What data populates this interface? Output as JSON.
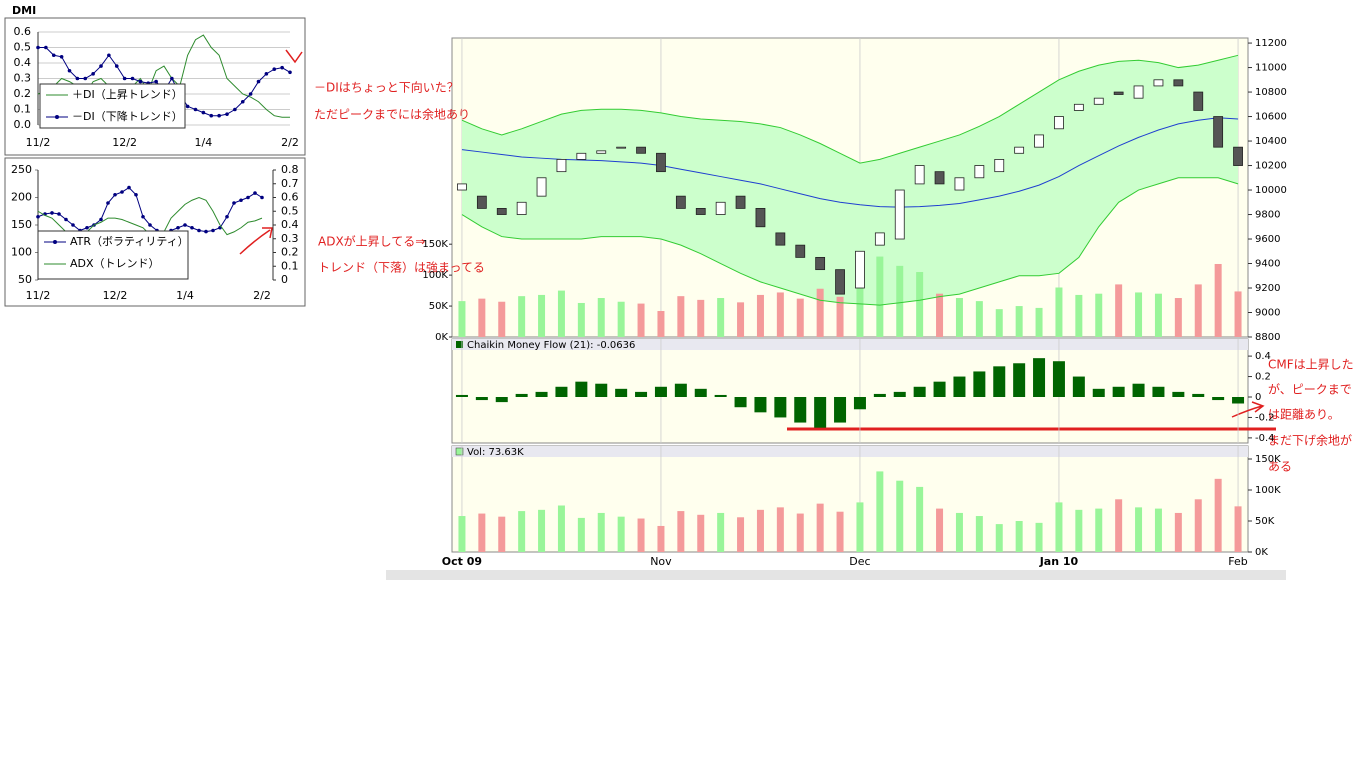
{
  "chart_data": [
    {
      "type": "line",
      "title": "DMI",
      "categories": [
        "11/2",
        null,
        null,
        null,
        null,
        null,
        null,
        null,
        null,
        null,
        null,
        "12/2",
        null,
        null,
        null,
        null,
        null,
        null,
        null,
        null,
        null,
        "1/4",
        null,
        null,
        null,
        null,
        null,
        null,
        null,
        null,
        null,
        null,
        "2/2"
      ],
      "series": [
        {
          "name": "＋DI（上昇トレンド）",
          "color": "#2e8b2e",
          "marker": false,
          "values": [
            0.2,
            0.22,
            0.25,
            0.3,
            0.28,
            0.25,
            0.2,
            0.28,
            0.3,
            0.25,
            0.2,
            0.18,
            0.25,
            0.3,
            0.22,
            0.35,
            0.38,
            0.3,
            0.25,
            0.45,
            0.55,
            0.58,
            0.5,
            0.45,
            0.3,
            0.25,
            0.2,
            0.18,
            0.15,
            0.1,
            0.06,
            0.05,
            0.05
          ]
        },
        {
          "name": "－DI（下降トレンド）",
          "color": "#000080",
          "marker": true,
          "values": [
            0.5,
            0.5,
            0.45,
            0.44,
            0.35,
            0.3,
            0.3,
            0.33,
            0.38,
            0.45,
            0.38,
            0.3,
            0.3,
            0.28,
            0.27,
            0.28,
            0.22,
            0.3,
            0.2,
            0.12,
            0.1,
            0.08,
            0.06,
            0.06,
            0.07,
            0.1,
            0.15,
            0.2,
            0.28,
            0.33,
            0.36,
            0.37,
            0.34
          ]
        }
      ],
      "ylim": [
        0,
        0.6
      ],
      "yticks": [
        {
          "value": 0,
          "label": "0.0"
        },
        0.1,
        0.2,
        0.3,
        0.4,
        0.5,
        0.6
      ],
      "grid": true
    },
    {
      "type": "line",
      "categories": [
        "11/2",
        null,
        null,
        null,
        null,
        null,
        null,
        null,
        null,
        null,
        null,
        "12/2",
        null,
        null,
        null,
        null,
        null,
        null,
        null,
        null,
        null,
        "1/4",
        null,
        null,
        null,
        null,
        null,
        null,
        null,
        null,
        null,
        null,
        "2/2"
      ],
      "series": [
        {
          "name": "ATR（ボラティリティ）",
          "color": "#000080",
          "marker": true,
          "values": [
            165,
            170,
            172,
            170,
            160,
            150,
            140,
            145,
            150,
            160,
            190,
            205,
            210,
            218,
            205,
            165,
            150,
            140,
            135,
            140,
            145,
            150,
            145,
            140,
            138,
            140,
            145,
            165,
            190,
            195,
            200,
            208,
            200
          ]
        },
        {
          "name": "ADX（トレンド）",
          "color": "#2e8b2e",
          "marker": false,
          "axis": "y2",
          "values": [
            0.5,
            0.47,
            0.45,
            0.4,
            0.35,
            0.32,
            0.3,
            0.35,
            0.4,
            0.42,
            0.45,
            0.45,
            0.44,
            0.42,
            0.4,
            0.38,
            0.33,
            0.3,
            0.35,
            0.45,
            0.5,
            0.55,
            0.58,
            0.6,
            0.58,
            0.5,
            0.4,
            0.33,
            0.35,
            0.38,
            0.42,
            0.43,
            0.45
          ]
        }
      ],
      "ylim": [
        50,
        250
      ],
      "yticks": [
        50,
        100,
        150,
        200,
        250
      ],
      "y2lim": [
        0,
        0.8
      ],
      "y2ticks": [
        0,
        0.1,
        0.2,
        0.3,
        0.4,
        0.5,
        0.6,
        0.7,
        0.8
      ],
      "grid": false
    },
    {
      "type": "candlestick",
      "categories": [
        "Oct 09",
        null,
        null,
        null,
        null,
        null,
        null,
        null,
        null,
        null,
        "Nov",
        null,
        null,
        null,
        null,
        null,
        null,
        null,
        null,
        null,
        "Dec",
        null,
        null,
        null,
        null,
        null,
        null,
        null,
        null,
        null,
        "Jan 10",
        null,
        null,
        null,
        null,
        null,
        null,
        null,
        null,
        "Feb"
      ],
      "open": [
        10000,
        9950,
        9850,
        9800,
        9950,
        10150,
        10250,
        10300,
        10350,
        10350,
        10300,
        9950,
        9850,
        9800,
        9950,
        9850,
        9650,
        9550,
        9450,
        9350,
        9200,
        9550,
        9600,
        10050,
        10150,
        10000,
        10100,
        10150,
        10300,
        10350,
        10500,
        10650,
        10700,
        10800,
        10750,
        10850,
        10900,
        10800,
        10600,
        10350
      ],
      "close": [
        10050,
        9850,
        9800,
        9900,
        10100,
        10250,
        10300,
        10320,
        10350,
        10300,
        10150,
        9850,
        9800,
        9900,
        9850,
        9700,
        9550,
        9450,
        9350,
        9150,
        9500,
        9650,
        10000,
        10200,
        10050,
        10100,
        10200,
        10250,
        10350,
        10450,
        10600,
        10700,
        10750,
        10780,
        10850,
        10900,
        10850,
        10650,
        10350,
        10200
      ],
      "upper_band": [
        10570,
        10500,
        10450,
        10500,
        10560,
        10620,
        10650,
        10660,
        10660,
        10650,
        10630,
        10600,
        10580,
        10570,
        10560,
        10540,
        10510,
        10450,
        10380,
        10300,
        10220,
        10250,
        10300,
        10350,
        10400,
        10450,
        10520,
        10600,
        10700,
        10800,
        10900,
        10970,
        11020,
        11050,
        11060,
        11040,
        11000,
        11020,
        11060,
        11100
      ],
      "middle_band": [
        10330,
        10310,
        10290,
        10270,
        10260,
        10250,
        10245,
        10240,
        10230,
        10220,
        10200,
        10170,
        10140,
        10110,
        10080,
        10050,
        10010,
        9970,
        9930,
        9900,
        9880,
        9865,
        9860,
        9865,
        9875,
        9890,
        9920,
        9950,
        9990,
        10040,
        10110,
        10200,
        10280,
        10360,
        10430,
        10490,
        10540,
        10570,
        10590,
        10580
      ],
      "lower_band": [
        9800,
        9700,
        9620,
        9600,
        9600,
        9600,
        9600,
        9620,
        9620,
        9620,
        9600,
        9550,
        9480,
        9400,
        9320,
        9250,
        9200,
        9150,
        9100,
        9080,
        9070,
        9060,
        9080,
        9100,
        9130,
        9150,
        9200,
        9250,
        9300,
        9300,
        9320,
        9450,
        9700,
        9900,
        10000,
        10050,
        10100,
        10100,
        10100,
        10050
      ],
      "up_color": "#ffffff",
      "down_color": "#555555",
      "band_color": "#33cc33",
      "band_fill": "#ccffcc",
      "middle_color": "#1f3fd0",
      "ylim": [
        8800,
        11225
      ],
      "yticks": [
        8800,
        9000,
        9200,
        9400,
        9600,
        9800,
        10000,
        10200,
        10400,
        10600,
        10800,
        11000,
        11200
      ],
      "y2lim": [
        0,
        480000
      ],
      "y2ticks": [
        {
          "value": 0,
          "label": "0K"
        },
        {
          "value": 50000,
          "label": "50K"
        },
        {
          "value": 100000,
          "label": "100K"
        },
        {
          "value": 150000,
          "label": "150K"
        }
      ]
    },
    {
      "type": "bar",
      "title": "Chaikin Money Flow (21): -0.0636",
      "color": "#006400",
      "values": [
        0.02,
        -0.03,
        -0.05,
        0.03,
        0.05,
        0.1,
        0.15,
        0.13,
        0.08,
        0.05,
        0.1,
        0.13,
        0.08,
        0.02,
        -0.1,
        -0.15,
        -0.2,
        -0.25,
        -0.3,
        -0.25,
        -0.12,
        0.03,
        0.05,
        0.1,
        0.15,
        0.2,
        0.25,
        0.3,
        0.33,
        0.38,
        0.35,
        0.2,
        0.08,
        0.1,
        0.13,
        0.1,
        0.05,
        0.03,
        -0.03,
        -0.0636
      ],
      "ylim": [
        -0.45,
        0.45
      ],
      "yticks": [
        0.4,
        0.2,
        0,
        -0.2,
        -0.4
      ]
    },
    {
      "type": "bar",
      "title": "Vol: 73.63K",
      "up_color": "#99f599",
      "down_color": "#f49a9a",
      "values": [
        58000,
        62000,
        57000,
        66000,
        68000,
        75000,
        55000,
        63000,
        57000,
        54000,
        42000,
        66000,
        60000,
        63000,
        56000,
        68000,
        72000,
        62000,
        78000,
        65000,
        80000,
        130000,
        115000,
        105000,
        70000,
        63000,
        58000,
        45000,
        50000,
        47000,
        80000,
        68000,
        70000,
        85000,
        72000,
        70000,
        63000,
        85000,
        118000,
        73630
      ],
      "ylim": [
        0,
        150000
      ],
      "yticks": [
        {
          "value": 0,
          "label": "0K"
        },
        {
          "value": 50000,
          "label": "50K"
        },
        {
          "value": 100000,
          "label": "100K"
        },
        {
          "value": 150000,
          "label": "150K"
        }
      ]
    }
  ],
  "annotations": [
    "－DIはちょっと下向いた？",
    "ただピークまでには余地あり",
    "ADXが上昇してる⇒",
    "トレンド（下落）は強まってる",
    "CMFは上昇した",
    "が、ピークまで",
    "は距離あり。",
    "まだ下げ余地が",
    "ある"
  ]
}
